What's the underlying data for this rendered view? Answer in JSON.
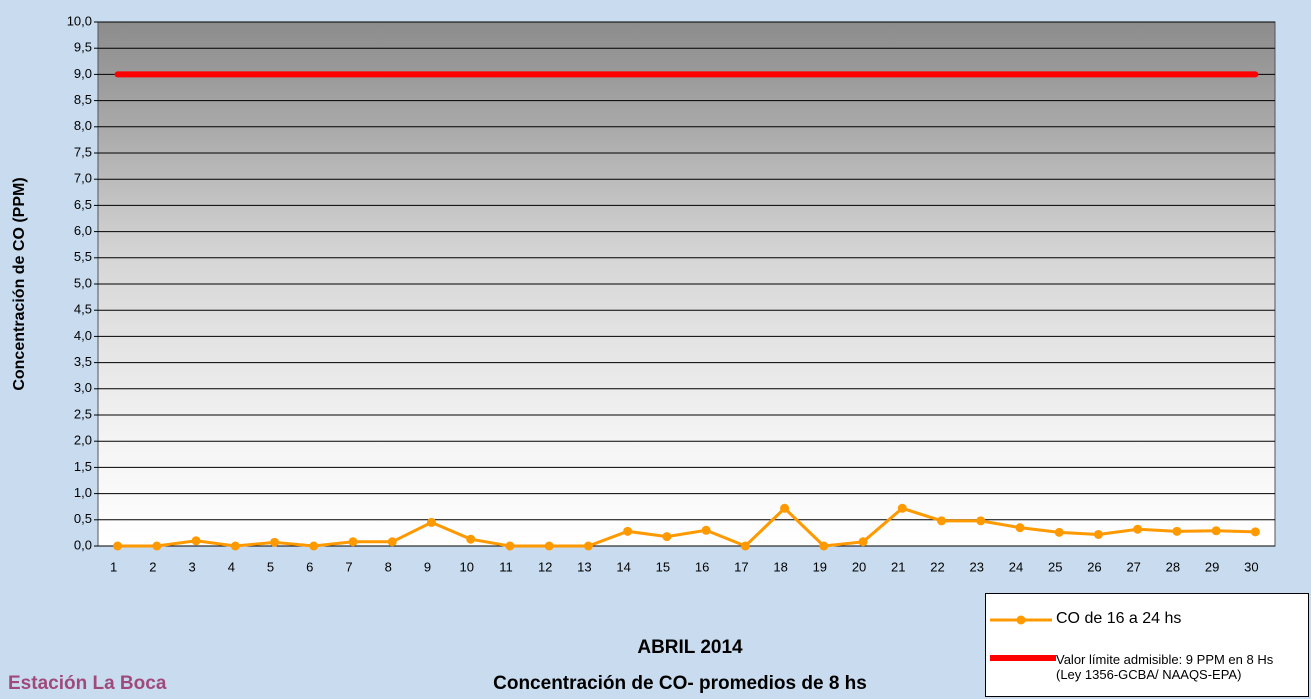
{
  "chart_data": {
    "type": "line",
    "title": "ABRIL 2014",
    "subtitle": "Concentración de CO- promedios de 8 hs",
    "annotation": "Estación La Boca",
    "y_label": "Concentración de CO (PPM)",
    "categories": [
      "1",
      "2",
      "3",
      "4",
      "5",
      "6",
      "7",
      "8",
      "9",
      "10",
      "11",
      "12",
      "13",
      "14",
      "15",
      "16",
      "17",
      "18",
      "19",
      "20",
      "21",
      "22",
      "23",
      "24",
      "25",
      "26",
      "27",
      "28",
      "29",
      "30"
    ],
    "series": [
      {
        "name": "CO de 16 a 24 hs",
        "color": "#ff9900",
        "marker": true,
        "values": [
          0,
          0,
          0.1,
          0,
          0.07,
          0,
          0.08,
          0.08,
          0.45,
          0.13,
          0,
          0,
          0,
          0.28,
          0.18,
          0.3,
          0,
          0.72,
          0,
          0.08,
          0.72,
          0.48,
          0.48,
          0.35,
          0.26,
          0.22,
          0.32,
          0.28,
          0.29,
          0.27
        ]
      },
      {
        "name": "Valor límite admisible: 9 PPM en 8 Hs (Ley 1356-GCBA/ NAAQS-EPA)",
        "color": "#ff0000",
        "marker": false,
        "values": [
          9,
          9,
          9,
          9,
          9,
          9,
          9,
          9,
          9,
          9,
          9,
          9,
          9,
          9,
          9,
          9,
          9,
          9,
          9,
          9,
          9,
          9,
          9,
          9,
          9,
          9,
          9,
          9,
          9,
          9
        ]
      }
    ],
    "ylim": [
      0,
      10
    ],
    "yticks": [
      {
        "value": 0,
        "label": "0,0"
      },
      {
        "value": 0.5,
        "label": "0,5"
      },
      {
        "value": 1,
        "label": "1,0"
      },
      {
        "value": 1.5,
        "label": "1,5"
      },
      {
        "value": 2,
        "label": "2,0"
      },
      {
        "value": 2.5,
        "label": "2,5"
      },
      {
        "value": 3,
        "label": "3,0"
      },
      {
        "value": 3.5,
        "label": "3,5"
      },
      {
        "value": 4,
        "label": "4,0"
      },
      {
        "value": 4.5,
        "label": "4,5"
      },
      {
        "value": 5,
        "label": "5,0"
      },
      {
        "value": 5.5,
        "label": "5,5"
      },
      {
        "value": 6,
        "label": "6,0"
      },
      {
        "value": 6.5,
        "label": "6,5"
      },
      {
        "value": 7,
        "label": "7,0"
      },
      {
        "value": 7.5,
        "label": "7,5"
      },
      {
        "value": 8,
        "label": "8,0"
      },
      {
        "value": 8.5,
        "label": "8,5"
      },
      {
        "value": 9,
        "label": "9,0"
      },
      {
        "value": 9.5,
        "label": "9,5"
      },
      {
        "value": 10,
        "label": "10,0"
      }
    ],
    "grid": true
  }
}
